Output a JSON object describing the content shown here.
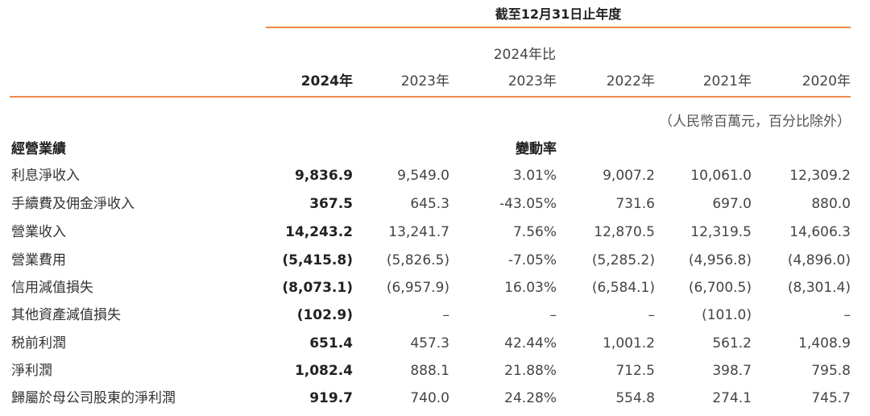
{
  "header": {
    "period_title": "截至12月31日止年度",
    "change_subheader": "2024年比",
    "columns": [
      "2024年",
      "2023年",
      "2023年",
      "2022年",
      "2021年",
      "2020年"
    ],
    "unit_note": "（人民幣百萬元，百分比除外）",
    "section_label": "經營業績",
    "change_label": "變動率"
  },
  "rows": [
    {
      "label": "利息淨收入",
      "v2024": "9,836.9",
      "v2023": "9,549.0",
      "change": "3.01%",
      "v2022": "9,007.2",
      "v2021": "10,061.0",
      "v2020": "12,309.2"
    },
    {
      "label": "手續費及佣金淨收入",
      "v2024": "367.5",
      "v2023": "645.3",
      "change": "-43.05%",
      "v2022": "731.6",
      "v2021": "697.0",
      "v2020": "880.0"
    },
    {
      "label": "營業收入",
      "v2024": "14,243.2",
      "v2023": "13,241.7",
      "change": "7.56%",
      "v2022": "12,870.5",
      "v2021": "12,319.5",
      "v2020": "14,606.3"
    },
    {
      "label": "營業費用",
      "v2024": "(5,415.8)",
      "v2023": "(5,826.5)",
      "change": "-7.05%",
      "v2022": "(5,285.2)",
      "v2021": "(4,956.8)",
      "v2020": "(4,896.0)"
    },
    {
      "label": "信用減值損失",
      "v2024": "(8,073.1)",
      "v2023": "(6,957.9)",
      "change": "16.03%",
      "v2022": "(6,584.1)",
      "v2021": "(6,700.5)",
      "v2020": "(8,301.4)"
    },
    {
      "label": "其他資產減值損失",
      "v2024": "(102.9)",
      "v2023": "–",
      "change": "–",
      "v2022": "–",
      "v2021": "(101.0)",
      "v2020": "–"
    },
    {
      "label": "税前利潤",
      "v2024": "651.4",
      "v2023": "457.3",
      "change": "42.44%",
      "v2022": "1,001.2",
      "v2021": "561.2",
      "v2020": "1,408.9"
    },
    {
      "label": "淨利潤",
      "v2024": "1,082.4",
      "v2023": "888.1",
      "change": "21.88%",
      "v2022": "712.5",
      "v2021": "398.7",
      "v2020": "795.8"
    },
    {
      "label": "歸屬於母公司股東的淨利潤",
      "v2024": "919.7",
      "v2023": "740.0",
      "change": "24.28%",
      "v2022": "554.8",
      "v2021": "274.1",
      "v2020": "745.7"
    }
  ]
}
